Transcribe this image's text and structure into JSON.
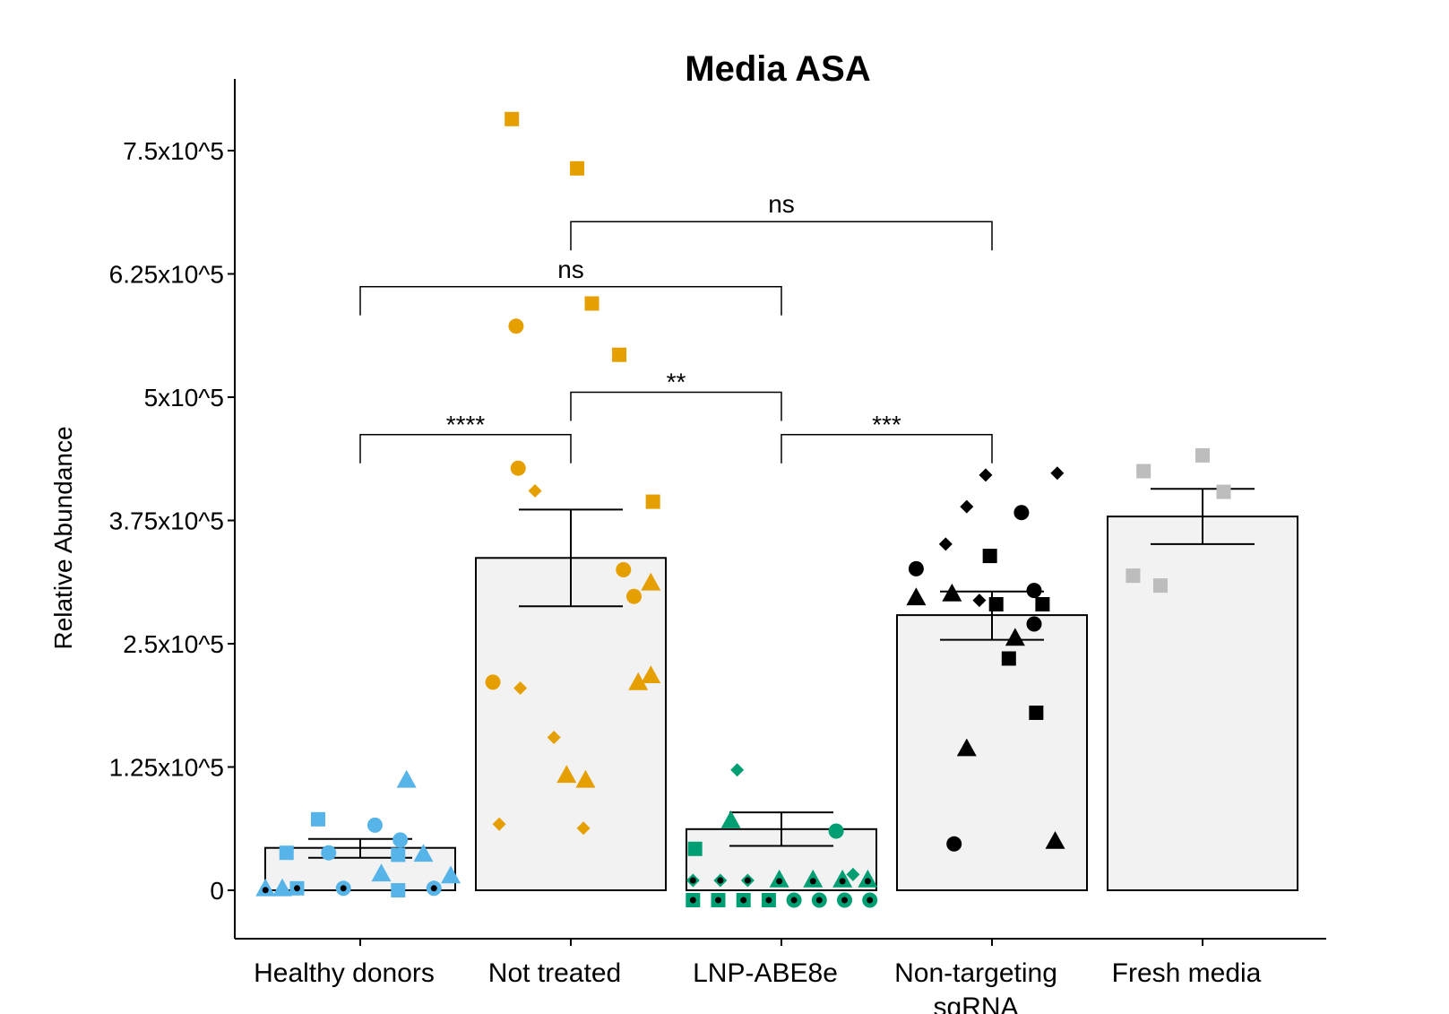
{
  "chart_data": {
    "type": "bar",
    "title": "Media ASA",
    "ylabel": "Relative Abundance",
    "xlabel": "",
    "ylim": [
      -50000,
      840000
    ],
    "yticks": [
      {
        "value": 0,
        "label": "0"
      },
      {
        "value": 125000,
        "label": "1.25x10^5"
      },
      {
        "value": 250000,
        "label": "2.5x10^5"
      },
      {
        "value": 375000,
        "label": "3.75x10^5"
      },
      {
        "value": 500000,
        "label": "5x10^5"
      },
      {
        "value": 625000,
        "label": "6.25x10^5"
      },
      {
        "value": 750000,
        "label": "7.5x10^5"
      }
    ],
    "categories": [
      {
        "label": "Healthy donors",
        "label2": ""
      },
      {
        "label": "Not treated",
        "label2": ""
      },
      {
        "label": "LNP-ABE8e",
        "label2": ""
      },
      {
        "label": "Non-targeting",
        "label2": "sgRNA"
      },
      {
        "label": "Fresh media",
        "label2": ""
      }
    ],
    "groups": [
      {
        "color": "#56B4E9",
        "mean": 43000,
        "err_low": 33000,
        "err_high": 52000,
        "points": [
          {
            "offset": -0.45,
            "value": 2000,
            "shape": "triangle",
            "dot": true
          },
          {
            "offset": -0.37,
            "value": 2000,
            "shape": "triangle"
          },
          {
            "offset": -0.3,
            "value": 2000,
            "shape": "square",
            "dot": true
          },
          {
            "offset": -0.08,
            "value": 2000,
            "shape": "circle",
            "dot": true
          },
          {
            "offset": 0.18,
            "value": 0,
            "shape": "square"
          },
          {
            "offset": 0.35,
            "value": 2000,
            "shape": "circle",
            "dot": true
          },
          {
            "offset": 0.43,
            "value": 15000,
            "shape": "triangle"
          },
          {
            "offset": 0.1,
            "value": 17000,
            "shape": "triangle"
          },
          {
            "offset": -0.35,
            "value": 38000,
            "shape": "square"
          },
          {
            "offset": -0.15,
            "value": 38000,
            "shape": "circle"
          },
          {
            "offset": 0.18,
            "value": 36000,
            "shape": "square"
          },
          {
            "offset": 0.3,
            "value": 37000,
            "shape": "triangle"
          },
          {
            "offset": -0.2,
            "value": 72000,
            "shape": "square"
          },
          {
            "offset": 0.07,
            "value": 66000,
            "shape": "circle"
          },
          {
            "offset": 0.19,
            "value": 51000,
            "shape": "circle"
          },
          {
            "offset": 0.22,
            "value": 112000,
            "shape": "triangle"
          }
        ]
      },
      {
        "color": "#E69F00",
        "mean": 337000,
        "err_low": 288000,
        "err_high": 386000,
        "points": [
          {
            "offset": -0.28,
            "value": 782000,
            "shape": "square"
          },
          {
            "offset": 0.03,
            "value": 732000,
            "shape": "square"
          },
          {
            "offset": 0.1,
            "value": 595000,
            "shape": "square"
          },
          {
            "offset": -0.26,
            "value": 572000,
            "shape": "circle"
          },
          {
            "offset": 0.23,
            "value": 543000,
            "shape": "square"
          },
          {
            "offset": -0.25,
            "value": 428000,
            "shape": "circle"
          },
          {
            "offset": -0.17,
            "value": 405000,
            "shape": "diamond"
          },
          {
            "offset": 0.39,
            "value": 394000,
            "shape": "square"
          },
          {
            "offset": 0.25,
            "value": 325000,
            "shape": "circle"
          },
          {
            "offset": 0.38,
            "value": 312000,
            "shape": "triangle"
          },
          {
            "offset": 0.3,
            "value": 298000,
            "shape": "circle"
          },
          {
            "offset": -0.37,
            "value": 211000,
            "shape": "circle"
          },
          {
            "offset": -0.24,
            "value": 205000,
            "shape": "diamond"
          },
          {
            "offset": 0.38,
            "value": 218000,
            "shape": "triangle"
          },
          {
            "offset": 0.32,
            "value": 211000,
            "shape": "triangle"
          },
          {
            "offset": -0.08,
            "value": 155000,
            "shape": "diamond"
          },
          {
            "offset": -0.02,
            "value": 117000,
            "shape": "triangle"
          },
          {
            "offset": 0.07,
            "value": 112000,
            "shape": "triangle"
          },
          {
            "offset": -0.34,
            "value": 67000,
            "shape": "diamond"
          },
          {
            "offset": 0.06,
            "value": 63000,
            "shape": "diamond"
          }
        ]
      },
      {
        "color": "#009E73",
        "mean": 62000,
        "err_low": 45000,
        "err_high": 79000,
        "points": [
          {
            "offset": -0.21,
            "value": 122000,
            "shape": "diamond"
          },
          {
            "offset": -0.24,
            "value": 71000,
            "shape": "triangle"
          },
          {
            "offset": 0.26,
            "value": 60000,
            "shape": "circle"
          },
          {
            "offset": -0.41,
            "value": 42000,
            "shape": "square"
          },
          {
            "offset": 0.34,
            "value": 16000,
            "shape": "diamond"
          },
          {
            "offset": -0.42,
            "value": 10000,
            "shape": "diamond",
            "dot": true
          },
          {
            "offset": -0.29,
            "value": 10000,
            "shape": "diamond",
            "dot": true
          },
          {
            "offset": -0.16,
            "value": 10000,
            "shape": "diamond",
            "dot": true
          },
          {
            "offset": -0.01,
            "value": 11000,
            "shape": "triangle",
            "dot": true
          },
          {
            "offset": 0.15,
            "value": 11000,
            "shape": "triangle",
            "dot": true
          },
          {
            "offset": 0.29,
            "value": 11000,
            "shape": "triangle",
            "dot": true
          },
          {
            "offset": 0.41,
            "value": 11000,
            "shape": "triangle",
            "dot": true
          },
          {
            "offset": -0.42,
            "value": -10000,
            "shape": "square",
            "dot": true
          },
          {
            "offset": -0.3,
            "value": -10000,
            "shape": "square",
            "dot": true
          },
          {
            "offset": -0.18,
            "value": -10000,
            "shape": "square",
            "dot": true
          },
          {
            "offset": -0.06,
            "value": -10000,
            "shape": "square",
            "dot": true
          },
          {
            "offset": 0.06,
            "value": -10000,
            "shape": "circle",
            "dot": true
          },
          {
            "offset": 0.18,
            "value": -10000,
            "shape": "circle",
            "dot": true
          },
          {
            "offset": 0.3,
            "value": -10000,
            "shape": "circle",
            "dot": true
          },
          {
            "offset": 0.42,
            "value": -10000,
            "shape": "circle",
            "dot": true
          }
        ]
      },
      {
        "color": "#000000",
        "mean": 279000,
        "err_low": 254000,
        "err_high": 303000,
        "points": [
          {
            "offset": -0.03,
            "value": 421000,
            "shape": "diamond"
          },
          {
            "offset": 0.31,
            "value": 423000,
            "shape": "diamond"
          },
          {
            "offset": -0.12,
            "value": 389000,
            "shape": "diamond"
          },
          {
            "offset": 0.14,
            "value": 383000,
            "shape": "circle"
          },
          {
            "offset": -0.22,
            "value": 351000,
            "shape": "diamond"
          },
          {
            "offset": -0.01,
            "value": 339000,
            "shape": "square"
          },
          {
            "offset": -0.36,
            "value": 326000,
            "shape": "circle"
          },
          {
            "offset": 0.2,
            "value": 304000,
            "shape": "circle"
          },
          {
            "offset": -0.36,
            "value": 297000,
            "shape": "triangle"
          },
          {
            "offset": -0.19,
            "value": 301000,
            "shape": "triangle"
          },
          {
            "offset": -0.06,
            "value": 294000,
            "shape": "diamond"
          },
          {
            "offset": 0.02,
            "value": 290000,
            "shape": "square"
          },
          {
            "offset": 0.24,
            "value": 290000,
            "shape": "square"
          },
          {
            "offset": 0.2,
            "value": 270000,
            "shape": "circle"
          },
          {
            "offset": 0.11,
            "value": 256000,
            "shape": "triangle"
          },
          {
            "offset": 0.08,
            "value": 235000,
            "shape": "square"
          },
          {
            "offset": 0.21,
            "value": 180000,
            "shape": "square"
          },
          {
            "offset": -0.12,
            "value": 144000,
            "shape": "triangle"
          },
          {
            "offset": -0.18,
            "value": 47000,
            "shape": "circle"
          },
          {
            "offset": 0.3,
            "value": 50000,
            "shape": "triangle"
          }
        ]
      },
      {
        "color": "#BDBDBD",
        "mean": 379000,
        "err_low": 351000,
        "err_high": 407000,
        "points": [
          {
            "offset": -0.28,
            "value": 425000,
            "shape": "square"
          },
          {
            "offset": 0.0,
            "value": 441000,
            "shape": "square"
          },
          {
            "offset": 0.1,
            "value": 404000,
            "shape": "square"
          },
          {
            "offset": -0.33,
            "value": 319000,
            "shape": "square"
          },
          {
            "offset": -0.2,
            "value": 309000,
            "shape": "square"
          }
        ]
      }
    ],
    "comparisons": [
      {
        "from": 0,
        "to": 1,
        "y": 462000,
        "label": "****"
      },
      {
        "from": 1,
        "to": 2,
        "y": 505000,
        "label": "**"
      },
      {
        "from": 2,
        "to": 3,
        "y": 462000,
        "label": "***"
      },
      {
        "from": 0,
        "to": 2,
        "y": 612000,
        "label": "ns"
      },
      {
        "from": 1,
        "to": 3,
        "y": 678000,
        "label": "ns"
      }
    ]
  }
}
